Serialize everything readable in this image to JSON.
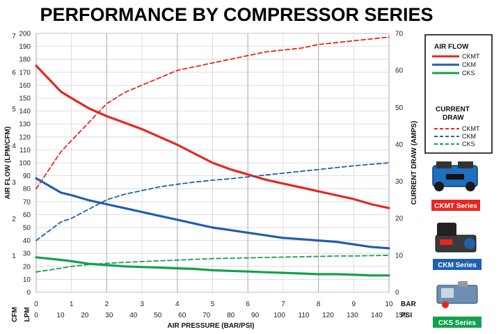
{
  "chart_data": {
    "type": "line",
    "title": "PERFORMANCE BY COMPRESSOR SERIES",
    "left_axis_label": "AIR FLOW (LPM/CFM)",
    "right_axis_label": "CURRENT DRAW (AMPS)",
    "x_axis_label": "AIR PRESSURE (BAR/PSI)",
    "unit_labels": {
      "cfm": "CFM",
      "lpm": "LPM",
      "bar": "BAR",
      "psi": "PSI"
    },
    "bar_ticks": [
      "0",
      "1",
      "2",
      "3",
      "4",
      "5",
      "6",
      "7",
      "8",
      "9",
      "10"
    ],
    "psi_ticks": [
      "0",
      "10",
      "20",
      "30",
      "40",
      "50",
      "60",
      "70",
      "80",
      "90",
      "100",
      "110",
      "120",
      "130",
      "140",
      "150"
    ],
    "lpm_ticks": [
      "0",
      "10",
      "20",
      "30",
      "40",
      "50",
      "60",
      "70",
      "80",
      "90",
      "100",
      "110",
      "120",
      "130",
      "140",
      "150",
      "160",
      "170",
      "180",
      "190",
      "200"
    ],
    "cfm_ticks": [
      "1",
      "2",
      "3",
      "4",
      "5",
      "6",
      "7"
    ],
    "amps_ticks": [
      "0",
      "10",
      "20",
      "30",
      "40",
      "50",
      "60",
      "70"
    ],
    "xlim": [
      0,
      10
    ],
    "ylim_flow": [
      0,
      200
    ],
    "ylim_amps": [
      0,
      70
    ],
    "legend": {
      "air_flow_heading": "AIR FLOW",
      "current_draw_heading": "CURRENT DRAW",
      "entries": [
        "CKMT",
        "CKM",
        "CKS"
      ]
    },
    "colors": {
      "CKMT": "#e8251f",
      "CKM": "#1f5fae",
      "CKS": "#12a14b"
    },
    "series": [
      {
        "name": "CKMT",
        "kind": "air_flow",
        "x": [
          0,
          0.7,
          1,
          1.5,
          2,
          2.5,
          3,
          3.5,
          4,
          4.5,
          5,
          5.5,
          6,
          6.5,
          7,
          7.5,
          8,
          8.5,
          9,
          9.5,
          10
        ],
        "values": [
          175,
          155,
          150,
          142,
          136,
          131,
          126,
          120,
          114,
          107,
          100,
          95,
          91,
          87,
          84,
          81,
          78,
          75,
          72,
          68,
          65
        ]
      },
      {
        "name": "CKM",
        "kind": "air_flow",
        "x": [
          0,
          0.7,
          1,
          1.5,
          2,
          2.5,
          3,
          3.5,
          4,
          4.5,
          5,
          5.5,
          6,
          6.5,
          7,
          7.5,
          8,
          8.5,
          9,
          9.5,
          10
        ],
        "values": [
          88,
          77,
          75,
          71,
          68,
          65,
          62,
          59,
          56,
          53,
          50,
          48,
          46,
          44,
          42,
          41,
          40,
          39,
          37,
          35,
          34
        ]
      },
      {
        "name": "CKS",
        "kind": "air_flow",
        "x": [
          0,
          0.7,
          1,
          1.5,
          2,
          2.5,
          3,
          3.5,
          4,
          4.5,
          5,
          5.5,
          6,
          6.5,
          7,
          7.5,
          8,
          8.5,
          9,
          9.5,
          10
        ],
        "values": [
          27,
          25,
          24,
          22,
          21,
          20,
          19.5,
          19,
          18.5,
          18,
          17,
          16.5,
          16,
          15.5,
          15,
          14.5,
          14,
          14,
          13.5,
          13,
          13
        ]
      },
      {
        "name": "CKMT",
        "kind": "current_draw",
        "x": [
          0,
          0.7,
          1,
          1.5,
          2,
          2.5,
          3,
          3.5,
          4,
          4.5,
          5,
          5.5,
          6,
          6.5,
          7,
          7.5,
          8,
          8.5,
          9,
          9.5,
          10
        ],
        "values": [
          28,
          38,
          41,
          46,
          51,
          54,
          56,
          58,
          60,
          61,
          62,
          63,
          64,
          65,
          65.5,
          66,
          67,
          67.5,
          68,
          68.5,
          69
        ]
      },
      {
        "name": "CKM",
        "kind": "current_draw",
        "x": [
          0,
          0.7,
          1,
          1.5,
          2,
          2.5,
          3,
          3.5,
          4,
          4.5,
          5,
          5.5,
          6,
          6.5,
          7,
          7.5,
          8,
          8.5,
          9,
          9.5,
          10
        ],
        "values": [
          14,
          19,
          20,
          22.5,
          25,
          26.5,
          27.5,
          28.5,
          29.2,
          29.8,
          30.3,
          30.7,
          31.2,
          31.7,
          32.2,
          32.7,
          33.2,
          33.7,
          34.2,
          34.6,
          35
        ]
      },
      {
        "name": "CKS",
        "kind": "current_draw",
        "x": [
          0,
          0.7,
          1,
          1.5,
          2,
          2.5,
          3,
          3.5,
          4,
          4.5,
          5,
          5.5,
          6,
          6.5,
          7,
          7.5,
          8,
          8.5,
          9,
          9.5,
          10
        ],
        "values": [
          5.5,
          6.5,
          7,
          7.5,
          7.8,
          8.1,
          8.3,
          8.5,
          8.7,
          8.9,
          9.1,
          9.2,
          9.3,
          9.4,
          9.5,
          9.6,
          9.7,
          9.8,
          9.8,
          9.9,
          10
        ]
      }
    ],
    "products": [
      "CKMT Series",
      "CKM Series",
      "CKS Series"
    ]
  }
}
